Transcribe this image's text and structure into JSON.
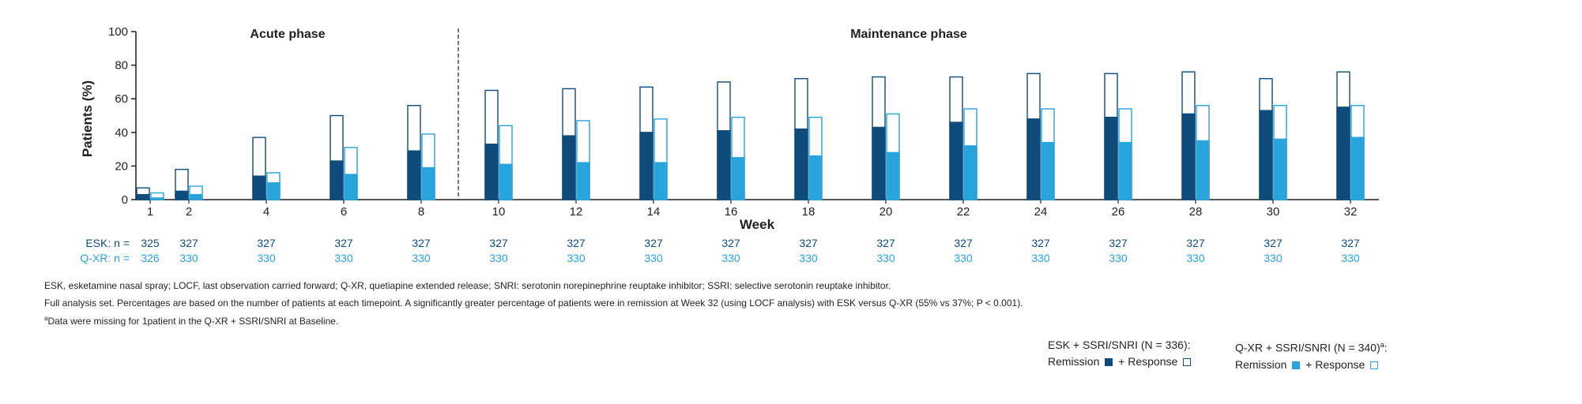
{
  "chart_data": {
    "type": "bar",
    "ylabel": "Patients (%)",
    "xlabel": "Week",
    "ylim": [
      0,
      100
    ],
    "yticks": [
      0,
      20,
      40,
      60,
      80,
      100
    ],
    "categories": [
      "1",
      "2",
      "4",
      "6",
      "8",
      "10",
      "12",
      "14",
      "16",
      "18",
      "20",
      "22",
      "24",
      "26",
      "28",
      "30",
      "32"
    ],
    "phases": [
      "Acute phase",
      "Maintenance phase"
    ],
    "series": [
      {
        "name": "ESK remission",
        "values": [
          3,
          5,
          14,
          23,
          29,
          33,
          38,
          40,
          41,
          42,
          43,
          46,
          48,
          49,
          51,
          53,
          55
        ]
      },
      {
        "name": "ESK response",
        "values": [
          7,
          18,
          37,
          50,
          56,
          65,
          66,
          67,
          70,
          72,
          73,
          73,
          75,
          75,
          76,
          72,
          76
        ]
      },
      {
        "name": "Q-XR remission",
        "values": [
          1,
          3,
          10,
          15,
          19,
          21,
          22,
          22,
          25,
          26,
          28,
          32,
          34,
          34,
          35,
          36,
          37
        ]
      },
      {
        "name": "Q-XR response",
        "values": [
          4,
          8,
          16,
          31,
          39,
          44,
          47,
          48,
          49,
          49,
          51,
          54,
          54,
          54,
          56,
          56,
          56
        ]
      }
    ],
    "n_rows": [
      {
        "label": "ESK: n =",
        "values": [
          "325",
          "327",
          "327",
          "327",
          "327",
          "327",
          "327",
          "327",
          "327",
          "327",
          "327",
          "327",
          "327",
          "327",
          "327",
          "327",
          "327"
        ]
      },
      {
        "label": "Q-XR: n =",
        "values": [
          "326",
          "330",
          "330",
          "330",
          "330",
          "330",
          "330",
          "330",
          "330",
          "330",
          "330",
          "330",
          "330",
          "330",
          "330",
          "330",
          "330"
        ]
      }
    ],
    "colors": {
      "esk": "#0f4c7c",
      "qxr": "#29a3dc",
      "axis": "#231f20"
    }
  },
  "footnotes": [
    "ESK, esketamine nasal spray; LOCF, last observation carried forward; Q-XR, quetiapine extended release; SNRI: serotonin norepinephrine reuptake inhibitor; SSRI: selective serotonin reuptake inhibitor.",
    "Full analysis set. Percentages are based on the number of patients at each timepoint. A significantly greater percentage of patients were in remission at Week 32 (using LOCF analysis) with ESK versus Q-XR (55% vs 37%; P < 0.001).",
    "Data were missing for 1patient in the Q-XR + SSRI/SNRI at Baseline."
  ],
  "footnote_marker": "a",
  "legend": {
    "esk": {
      "title": "ESK + SSRI/SNRI (N = 336):",
      "remission": "Remission",
      "plus": "+",
      "response": "Response"
    },
    "qxr": {
      "title": "Q-XR + SSRI/SNRI (N = 340)",
      "title_sup": "a",
      "title_suffix": ":",
      "remission": "Remission",
      "plus": "+",
      "response": "Response"
    }
  }
}
